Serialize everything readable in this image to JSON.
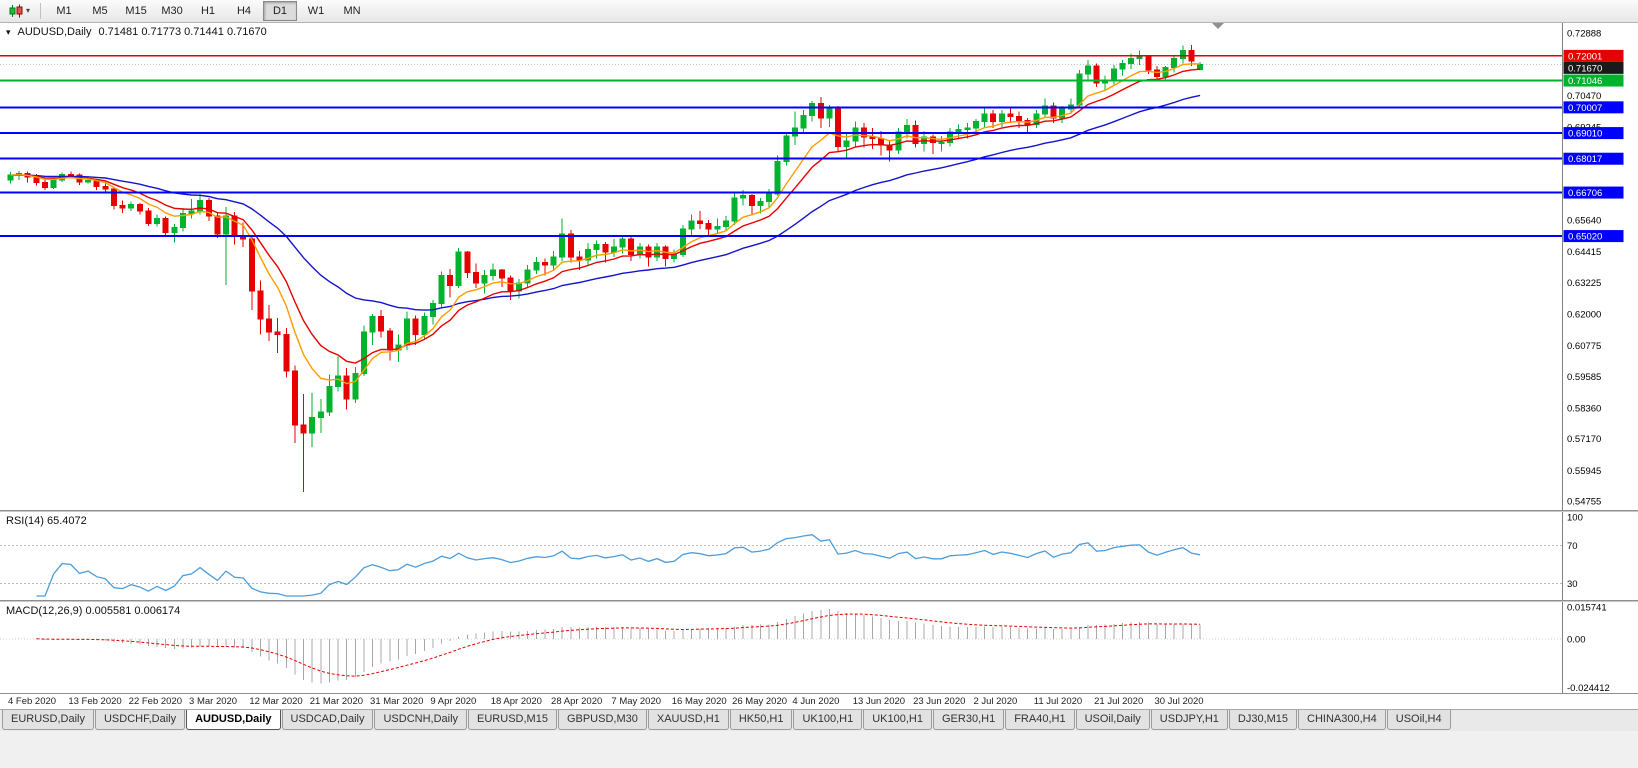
{
  "icons": {
    "toolbar_caret": "▾"
  },
  "toolbar": {
    "timeframes": [
      "M1",
      "M5",
      "M15",
      "M30",
      "H1",
      "H4",
      "D1",
      "W1",
      "MN"
    ],
    "active_timeframe": "D1"
  },
  "chart": {
    "header": {
      "icon": "▾",
      "title": "AUDUSD,Daily",
      "ohlc": "0.71481 0.71773 0.71441 0.71670"
    }
  },
  "chart_data": {
    "type": "candlestick",
    "symbol": "AUDUSD",
    "timeframe": "Daily",
    "title": "AUDUSD,Daily",
    "current_bar": {
      "open": 0.71481,
      "high": 0.71773,
      "low": 0.71441,
      "close": 0.7167
    },
    "ylim": [
      0.54408,
      0.73275
    ],
    "y_axis_ticks": [
      "0.72888",
      "0.70470",
      "0.69245",
      "0.65640",
      "0.64415",
      "0.63225",
      "0.62000",
      "0.60775",
      "0.59585",
      "0.58360",
      "0.57170",
      "0.55945",
      "0.54755"
    ],
    "x_labels": [
      "4 Feb 2020",
      "13 Feb 2020",
      "22 Feb 2020",
      "3 Mar 2020",
      "12 Mar 2020",
      "21 Mar 2020",
      "31 Mar 2020",
      "9 Apr 2020",
      "18 Apr 2020",
      "28 Apr 2020",
      "7 May 2020",
      "16 May 2020",
      "26 May 2020",
      "4 Jun 2020",
      "13 Jun 2020",
      "23 Jun 2020",
      "2 Jul 2020",
      "11 Jul 2020",
      "21 Jul 2020",
      "30 Jul 2020"
    ],
    "x_label_every": 7,
    "price_lines": [
      {
        "price": 0.72001,
        "label": "0.72001",
        "color": "#e60000",
        "width": 1.5
      },
      {
        "price": 0.71046,
        "label": "0.71046",
        "color": "#00b22d",
        "width": 2
      },
      {
        "price": 0.70007,
        "label": "0.70007",
        "color": "#0000ff",
        "width": 2
      },
      {
        "price": 0.6901,
        "label": "0.69010",
        "color": "#0000ff",
        "width": 2
      },
      {
        "price": 0.68017,
        "label": "0.68017",
        "color": "#0000ff",
        "width": 2
      },
      {
        "price": 0.66706,
        "label": "0.66706",
        "color": "#0000ff",
        "width": 2
      },
      {
        "price": 0.6502,
        "label": "0.65020",
        "color": "#0000ff",
        "width": 2
      }
    ],
    "current_price": {
      "value": 0.7167,
      "label": "0.71670",
      "box_color": "#1a1a1a"
    },
    "colors": {
      "up": "#00b22d",
      "down": "#e60000",
      "rsi_line": "#4a9ede",
      "macd_hist": "#a8a8a8",
      "macd_signal": "#e60000"
    },
    "moving_averages": [
      {
        "name": "slow-ma",
        "period": 34,
        "color": "#1414cc"
      },
      {
        "name": "medium-ma",
        "period": 13,
        "color": "#e60000"
      },
      {
        "name": "fast-ma",
        "period": 8,
        "color": "#ff9c00"
      }
    ],
    "indicators": {
      "rsi": {
        "label": "RSI(14) 65.4072",
        "period": 14,
        "value": 65.4072,
        "levels": [
          "100",
          "70",
          "30"
        ],
        "ylim": [
          0,
          100
        ]
      },
      "macd": {
        "label": "MACD(12,26,9) 0.005581 0.006174",
        "fast": 12,
        "slow": 26,
        "signal_period": 9,
        "value": 0.005581,
        "signal": 0.006174,
        "scale_labels": [
          "0.015741",
          "0.00",
          "-0.024412"
        ],
        "ylim": [
          -0.024412,
          0.015741
        ]
      }
    },
    "candles": [
      [
        0.672,
        0.675,
        0.6705,
        0.6738
      ],
      [
        0.6738,
        0.6755,
        0.672,
        0.6744
      ],
      [
        0.6744,
        0.6752,
        0.671,
        0.673
      ],
      [
        0.673,
        0.6742,
        0.6698,
        0.671
      ],
      [
        0.671,
        0.6725,
        0.668,
        0.669
      ],
      [
        0.669,
        0.6728,
        0.6685,
        0.672
      ],
      [
        0.672,
        0.6748,
        0.6712,
        0.674
      ],
      [
        0.674,
        0.6752,
        0.6725,
        0.6738
      ],
      [
        0.6738,
        0.6745,
        0.67,
        0.6712
      ],
      [
        0.6712,
        0.673,
        0.6705,
        0.6718
      ],
      [
        0.6718,
        0.6722,
        0.668,
        0.6695
      ],
      [
        0.6695,
        0.6705,
        0.667,
        0.6685
      ],
      [
        0.6685,
        0.669,
        0.6605,
        0.662
      ],
      [
        0.662,
        0.664,
        0.6592,
        0.661
      ],
      [
        0.661,
        0.6635,
        0.66,
        0.6625
      ],
      [
        0.6625,
        0.663,
        0.6585,
        0.66
      ],
      [
        0.66,
        0.661,
        0.6542,
        0.655
      ],
      [
        0.655,
        0.6585,
        0.654,
        0.657
      ],
      [
        0.657,
        0.6578,
        0.65,
        0.6515
      ],
      [
        0.6515,
        0.6548,
        0.6478,
        0.6535
      ],
      [
        0.6535,
        0.661,
        0.652,
        0.659
      ],
      [
        0.659,
        0.6645,
        0.657,
        0.66
      ],
      [
        0.66,
        0.6665,
        0.6585,
        0.664
      ],
      [
        0.664,
        0.665,
        0.656,
        0.658
      ],
      [
        0.658,
        0.6595,
        0.6495,
        0.651
      ],
      [
        0.651,
        0.6615,
        0.6313,
        0.658
      ],
      [
        0.658,
        0.6595,
        0.647,
        0.65
      ],
      [
        0.65,
        0.6555,
        0.646,
        0.649
      ],
      [
        0.649,
        0.65,
        0.6215,
        0.629
      ],
      [
        0.629,
        0.633,
        0.612,
        0.618
      ],
      [
        0.618,
        0.6235,
        0.6095,
        0.613
      ],
      [
        0.613,
        0.6185,
        0.605,
        0.612
      ],
      [
        0.612,
        0.6145,
        0.5955,
        0.598
      ],
      [
        0.598,
        0.6,
        0.57,
        0.577
      ],
      [
        0.577,
        0.589,
        0.551,
        0.574
      ],
      [
        0.574,
        0.5895,
        0.5685,
        0.58
      ],
      [
        0.58,
        0.587,
        0.574,
        0.582
      ],
      [
        0.582,
        0.5965,
        0.5805,
        0.592
      ],
      [
        0.592,
        0.6035,
        0.59,
        0.596
      ],
      [
        0.596,
        0.599,
        0.583,
        0.587
      ],
      [
        0.587,
        0.5995,
        0.5855,
        0.597
      ],
      [
        0.597,
        0.6155,
        0.596,
        0.613
      ],
      [
        0.613,
        0.62,
        0.608,
        0.619
      ],
      [
        0.619,
        0.6215,
        0.611,
        0.6135
      ],
      [
        0.6135,
        0.6145,
        0.602,
        0.606
      ],
      [
        0.606,
        0.612,
        0.6015,
        0.608
      ],
      [
        0.608,
        0.621,
        0.606,
        0.618
      ],
      [
        0.618,
        0.6195,
        0.608,
        0.612
      ],
      [
        0.612,
        0.6205,
        0.61,
        0.619
      ],
      [
        0.619,
        0.6255,
        0.616,
        0.624
      ],
      [
        0.624,
        0.6365,
        0.6225,
        0.635
      ],
      [
        0.635,
        0.6375,
        0.6265,
        0.631
      ],
      [
        0.631,
        0.6455,
        0.63,
        0.644
      ],
      [
        0.644,
        0.6445,
        0.634,
        0.636
      ],
      [
        0.636,
        0.6395,
        0.63,
        0.632
      ],
      [
        0.632,
        0.637,
        0.628,
        0.635
      ],
      [
        0.635,
        0.6395,
        0.633,
        0.637
      ],
      [
        0.637,
        0.6375,
        0.6305,
        0.634
      ],
      [
        0.634,
        0.635,
        0.6255,
        0.629
      ],
      [
        0.629,
        0.6335,
        0.626,
        0.632
      ],
      [
        0.632,
        0.639,
        0.6305,
        0.637
      ],
      [
        0.637,
        0.642,
        0.6355,
        0.64
      ],
      [
        0.64,
        0.6415,
        0.635,
        0.639
      ],
      [
        0.639,
        0.6445,
        0.637,
        0.642
      ],
      [
        0.642,
        0.657,
        0.6405,
        0.651
      ],
      [
        0.651,
        0.6525,
        0.64,
        0.642
      ],
      [
        0.642,
        0.6445,
        0.637,
        0.641
      ],
      [
        0.641,
        0.6475,
        0.639,
        0.645
      ],
      [
        0.645,
        0.6485,
        0.6415,
        0.647
      ],
      [
        0.647,
        0.648,
        0.64,
        0.644
      ],
      [
        0.644,
        0.649,
        0.642,
        0.646
      ],
      [
        0.646,
        0.6505,
        0.6435,
        0.649
      ],
      [
        0.649,
        0.65,
        0.6405,
        0.643
      ],
      [
        0.643,
        0.6475,
        0.6415,
        0.646
      ],
      [
        0.646,
        0.647,
        0.6385,
        0.642
      ],
      [
        0.642,
        0.6475,
        0.6405,
        0.646
      ],
      [
        0.646,
        0.6465,
        0.6385,
        0.6415
      ],
      [
        0.6415,
        0.645,
        0.64,
        0.643
      ],
      [
        0.643,
        0.6545,
        0.642,
        0.653
      ],
      [
        0.653,
        0.6585,
        0.6505,
        0.656
      ],
      [
        0.656,
        0.66,
        0.653,
        0.655
      ],
      [
        0.655,
        0.6565,
        0.6505,
        0.653
      ],
      [
        0.653,
        0.657,
        0.651,
        0.654
      ],
      [
        0.654,
        0.658,
        0.652,
        0.656
      ],
      [
        0.656,
        0.667,
        0.6545,
        0.665
      ],
      [
        0.665,
        0.668,
        0.662,
        0.666
      ],
      [
        0.666,
        0.6665,
        0.6585,
        0.662
      ],
      [
        0.662,
        0.665,
        0.659,
        0.6635
      ],
      [
        0.6635,
        0.6685,
        0.6615,
        0.6665
      ],
      [
        0.6665,
        0.6815,
        0.666,
        0.679
      ],
      [
        0.679,
        0.69,
        0.6775,
        0.689
      ],
      [
        0.689,
        0.6985,
        0.6855,
        0.692
      ],
      [
        0.692,
        0.699,
        0.69,
        0.697
      ],
      [
        0.697,
        0.7025,
        0.6945,
        0.7015
      ],
      [
        0.7015,
        0.704,
        0.692,
        0.696
      ],
      [
        0.696,
        0.701,
        0.6925,
        0.7
      ],
      [
        0.7,
        0.7005,
        0.683,
        0.685
      ],
      [
        0.685,
        0.6905,
        0.68,
        0.687
      ],
      [
        0.687,
        0.6945,
        0.685,
        0.692
      ],
      [
        0.692,
        0.694,
        0.6845,
        0.6885
      ],
      [
        0.6885,
        0.692,
        0.684,
        0.688
      ],
      [
        0.688,
        0.691,
        0.6815,
        0.6855
      ],
      [
        0.6855,
        0.687,
        0.679,
        0.6835
      ],
      [
        0.6835,
        0.692,
        0.682,
        0.6905
      ],
      [
        0.6905,
        0.6955,
        0.688,
        0.693
      ],
      [
        0.693,
        0.695,
        0.6845,
        0.686
      ],
      [
        0.686,
        0.691,
        0.683,
        0.6885
      ],
      [
        0.6885,
        0.6895,
        0.682,
        0.6865
      ],
      [
        0.6865,
        0.689,
        0.683,
        0.6865
      ],
      [
        0.6865,
        0.692,
        0.685,
        0.6905
      ],
      [
        0.6905,
        0.6935,
        0.688,
        0.6915
      ],
      [
        0.6915,
        0.694,
        0.688,
        0.692
      ],
      [
        0.692,
        0.6955,
        0.69,
        0.6945
      ],
      [
        0.6945,
        0.7,
        0.6925,
        0.6975
      ],
      [
        0.6975,
        0.699,
        0.692,
        0.6945
      ],
      [
        0.6945,
        0.699,
        0.6925,
        0.6975
      ],
      [
        0.6975,
        0.7,
        0.694,
        0.6965
      ],
      [
        0.6965,
        0.6985,
        0.692,
        0.695
      ],
      [
        0.695,
        0.696,
        0.69,
        0.6935
      ],
      [
        0.6935,
        0.699,
        0.692,
        0.6975
      ],
      [
        0.6975,
        0.7035,
        0.696,
        0.7005
      ],
      [
        0.7005,
        0.702,
        0.694,
        0.696
      ],
      [
        0.696,
        0.7005,
        0.694,
        0.6995
      ],
      [
        0.6995,
        0.7035,
        0.6975,
        0.701
      ],
      [
        0.701,
        0.7145,
        0.7,
        0.713
      ],
      [
        0.713,
        0.7185,
        0.71,
        0.716
      ],
      [
        0.716,
        0.717,
        0.708,
        0.7095
      ],
      [
        0.7095,
        0.7125,
        0.7065,
        0.7105
      ],
      [
        0.7105,
        0.7165,
        0.709,
        0.715
      ],
      [
        0.715,
        0.7185,
        0.7125,
        0.717
      ],
      [
        0.717,
        0.721,
        0.715,
        0.719
      ],
      [
        0.719,
        0.722,
        0.7165,
        0.7195
      ],
      [
        0.7195,
        0.72,
        0.713,
        0.7145
      ],
      [
        0.7145,
        0.716,
        0.7105,
        0.712
      ],
      [
        0.712,
        0.716,
        0.71,
        0.7155
      ],
      [
        0.7155,
        0.72,
        0.7135,
        0.719
      ],
      [
        0.719,
        0.724,
        0.717,
        0.722
      ],
      [
        0.722,
        0.7243,
        0.716,
        0.718
      ],
      [
        0.71481,
        0.71773,
        0.71441,
        0.7167
      ]
    ]
  },
  "bottom_tabs": {
    "active": "AUDUSD,Daily",
    "tabs": [
      "EURUSD,Daily",
      "USDCHF,Daily",
      "AUDUSD,Daily",
      "USDCAD,Daily",
      "USDCNH,Daily",
      "EURUSD,M15",
      "GBPUSD,M30",
      "XAUUSD,H1",
      "HK50,H1",
      "UK100,H1",
      "UK100,H1",
      "GER30,H1",
      "FRA40,H1",
      "USOil,Daily",
      "USDJPY,H1",
      "DJ30,M15",
      "CHINA300,H4",
      "USOil,H4"
    ]
  }
}
